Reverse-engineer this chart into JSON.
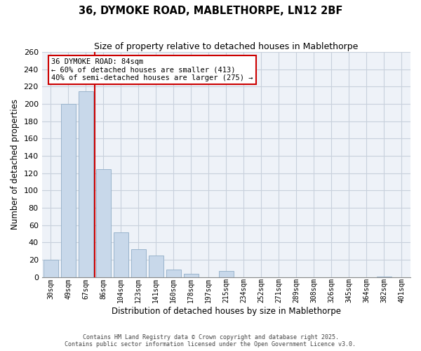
{
  "title1": "36, DYMOKE ROAD, MABLETHORPE, LN12 2BF",
  "title2": "Size of property relative to detached houses in Mablethorpe",
  "xlabel": "Distribution of detached houses by size in Mablethorpe",
  "ylabel": "Number of detached properties",
  "categories": [
    "30sqm",
    "49sqm",
    "67sqm",
    "86sqm",
    "104sqm",
    "123sqm",
    "141sqm",
    "160sqm",
    "178sqm",
    "197sqm",
    "215sqm",
    "234sqm",
    "252sqm",
    "271sqm",
    "289sqm",
    "308sqm",
    "326sqm",
    "345sqm",
    "364sqm",
    "382sqm",
    "401sqm"
  ],
  "bar_heights": [
    20,
    200,
    215,
    125,
    52,
    32,
    25,
    9,
    4,
    0,
    7,
    0,
    0,
    0,
    0,
    0,
    0,
    0,
    0,
    1,
    0
  ],
  "bar_color": "#c8d8ea",
  "bar_edge_color": "#9ab4cc",
  "vline_color": "#cc0000",
  "ylim": [
    0,
    260
  ],
  "yticks": [
    0,
    20,
    40,
    60,
    80,
    100,
    120,
    140,
    160,
    180,
    200,
    220,
    240,
    260
  ],
  "annotation_title": "36 DYMOKE ROAD: 84sqm",
  "annotation_line1": "← 60% of detached houses are smaller (413)",
  "annotation_line2": "40% of semi-detached houses are larger (275) →",
  "footer1": "Contains HM Land Registry data © Crown copyright and database right 2025.",
  "footer2": "Contains public sector information licensed under the Open Government Licence v3.0.",
  "plot_bg_color": "#eef2f8",
  "grid_color": "#c8d0dc"
}
